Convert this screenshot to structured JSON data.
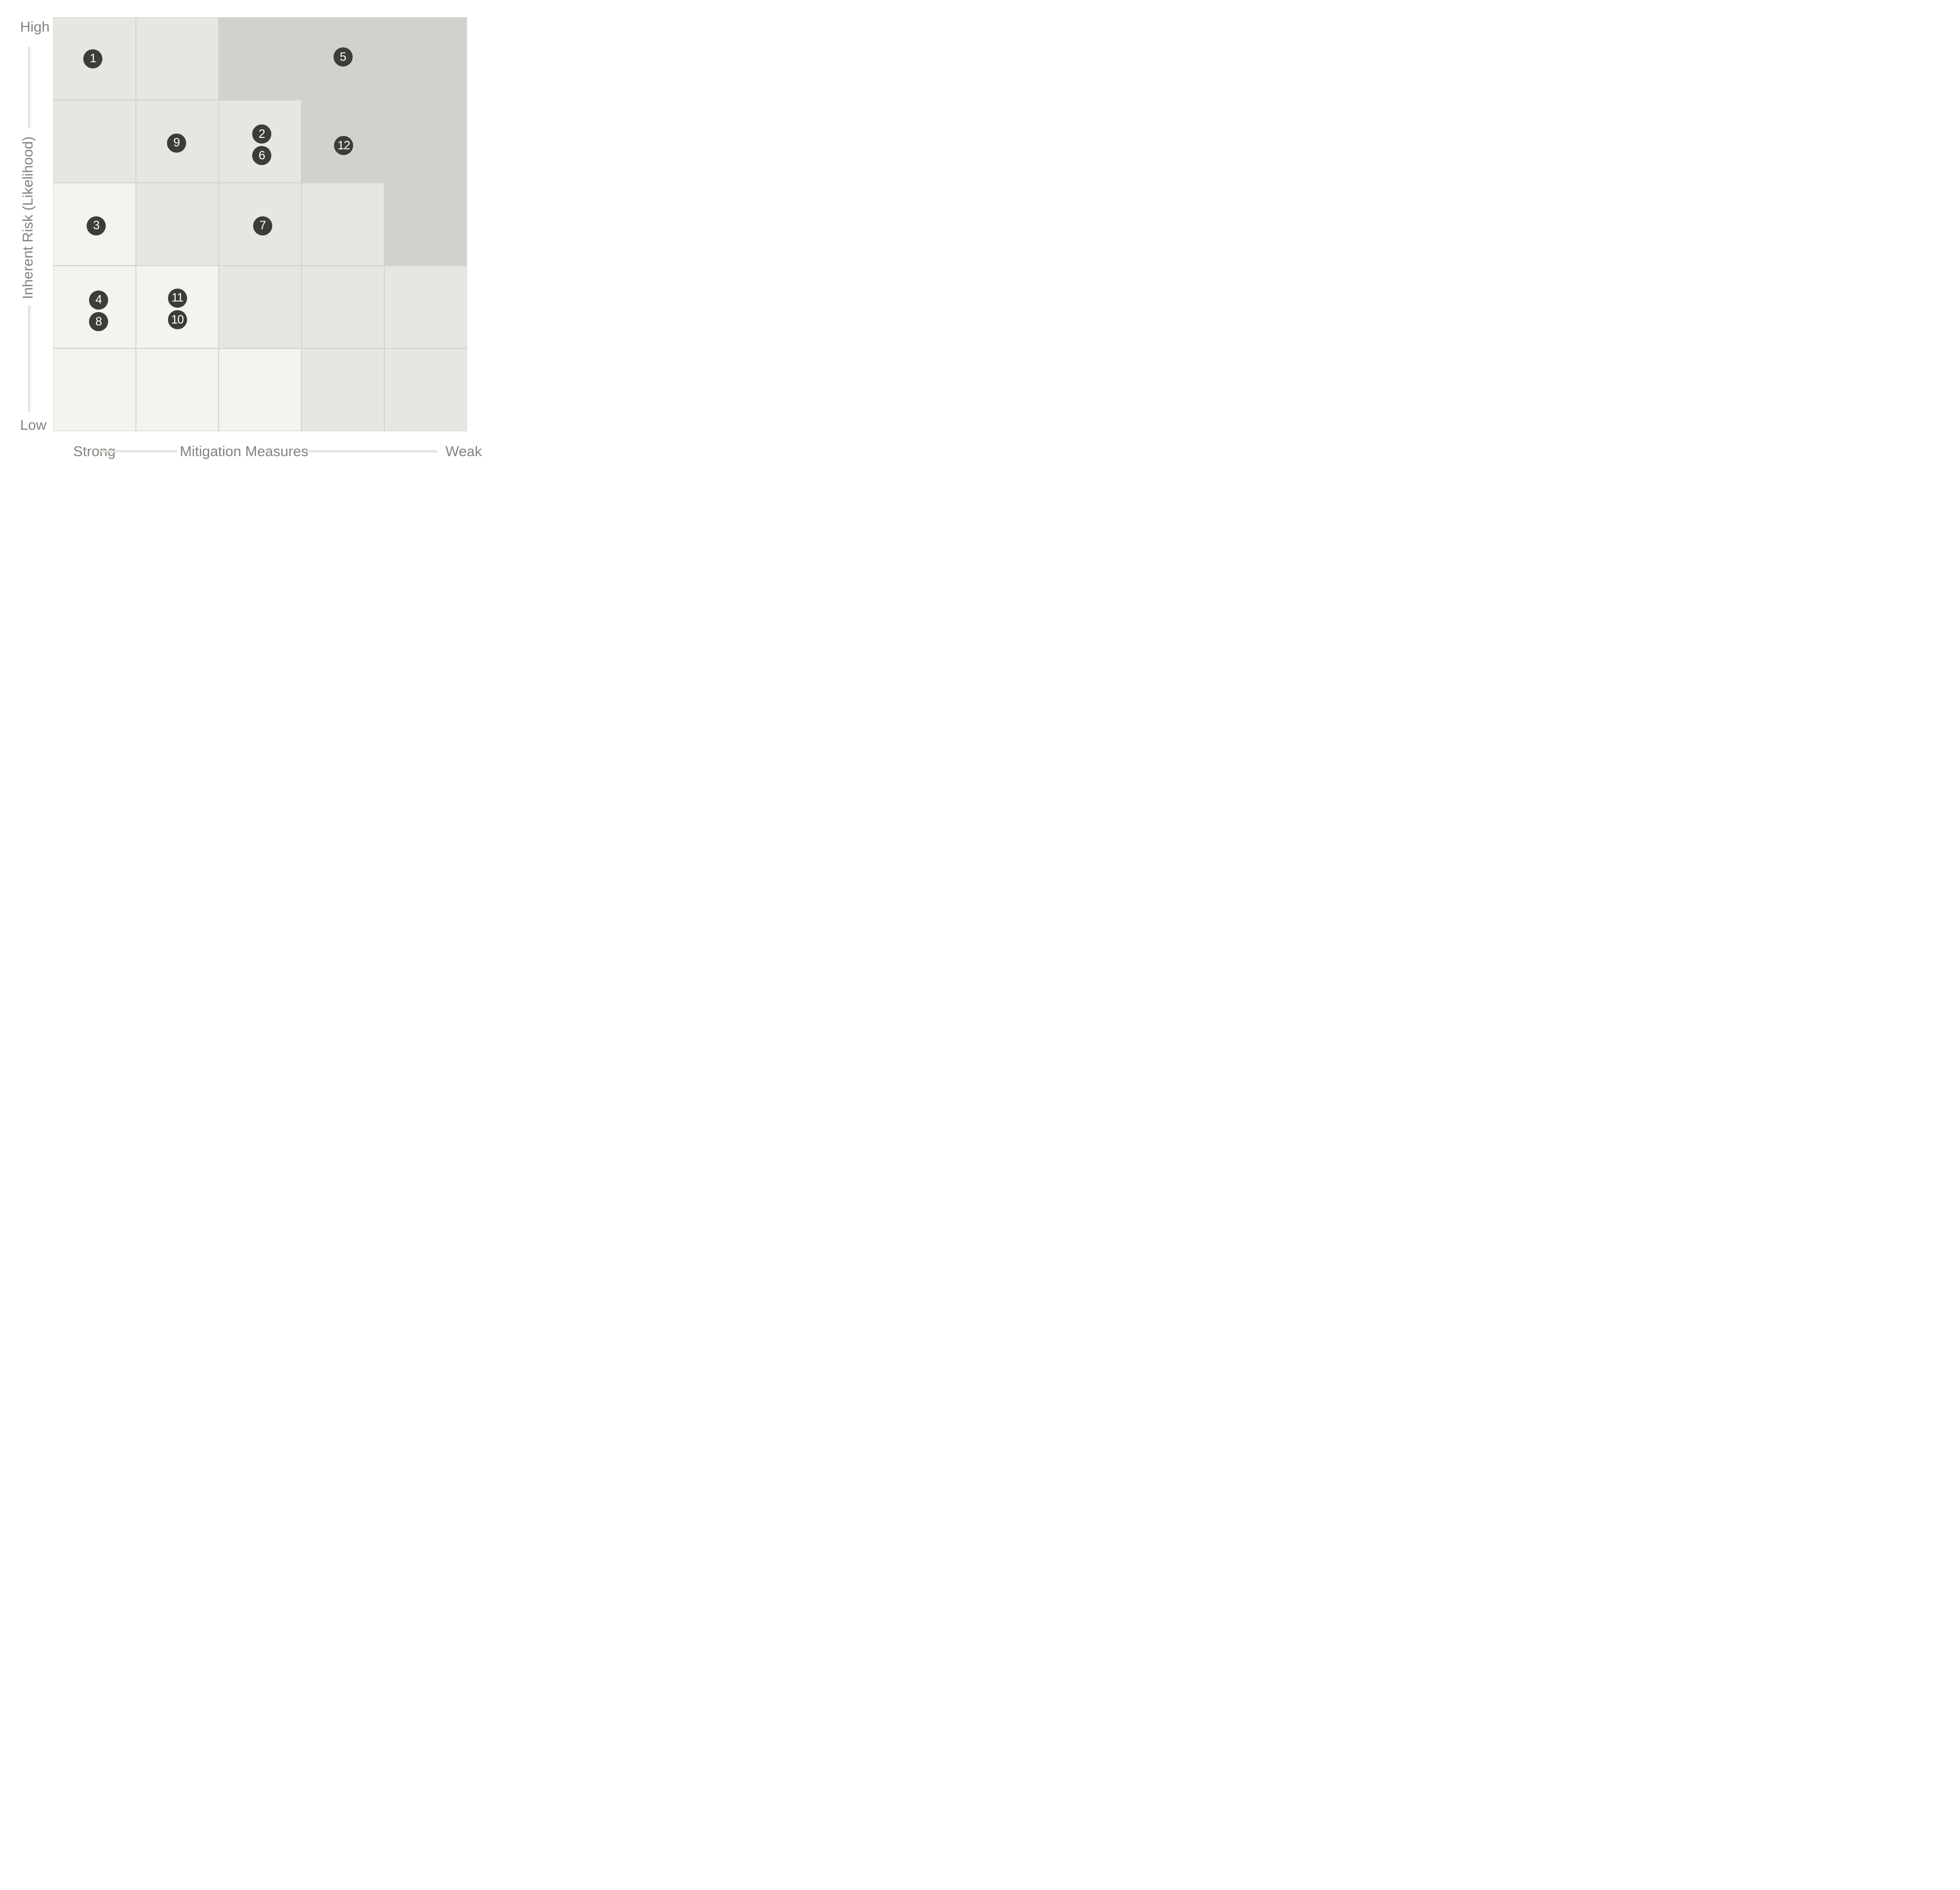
{
  "colors": {
    "background": "#ffffff",
    "cell_dark": "#d2d2cd",
    "cell_mid": "#e7e7e2",
    "cell_light": "#f4f4ef",
    "marker_fill": "#3c3c38",
    "marker_text": "#ffffff",
    "label_text": "#82827e",
    "axis_line": "#c9c9c5"
  },
  "y_axis": {
    "title": "Inherent Risk (Likelihood)",
    "top_label": "High",
    "bottom_label": "Low"
  },
  "x_axis": {
    "title": "Mitigation Measures",
    "left_label": "Strong",
    "right_label": "Weak"
  },
  "chart_data": {
    "type": "heatmap",
    "title": "",
    "xlabel": "Mitigation Measures",
    "ylabel": "Inherent Risk (Likelihood)",
    "x_endpoints": [
      "Strong",
      "Weak"
    ],
    "y_endpoints": [
      "High",
      "Low"
    ],
    "rows": 5,
    "cols": 5,
    "legend": "none",
    "cell_shades": [
      [
        "mid",
        "mid",
        "dark",
        "dark",
        "dark"
      ],
      [
        "mid",
        "mid",
        "mid",
        "dark",
        "dark"
      ],
      [
        "light",
        "mid",
        "mid",
        "mid",
        "dark"
      ],
      [
        "light",
        "light",
        "mid",
        "mid",
        "mid"
      ],
      [
        "light",
        "light",
        "light",
        "mid",
        "mid"
      ]
    ],
    "points": [
      {
        "label": "1",
        "row": 1,
        "col": 1,
        "fx": 0.48,
        "fy": 0.5
      },
      {
        "label": "5",
        "row": 1,
        "col": 4,
        "fx": 0.5,
        "fy": 0.48
      },
      {
        "label": "9",
        "row": 2,
        "col": 2,
        "fx": 0.49,
        "fy": 0.52
      },
      {
        "label": "2",
        "row": 2,
        "col": 3,
        "fx": 0.52,
        "fy": 0.41
      },
      {
        "label": "6",
        "row": 2,
        "col": 3,
        "fx": 0.52,
        "fy": 0.675
      },
      {
        "label": "12",
        "row": 2,
        "col": 4,
        "fx": 0.51,
        "fy": 0.55
      },
      {
        "label": "3",
        "row": 3,
        "col": 1,
        "fx": 0.52,
        "fy": 0.52
      },
      {
        "label": "7",
        "row": 3,
        "col": 3,
        "fx": 0.53,
        "fy": 0.52
      },
      {
        "label": "4",
        "row": 4,
        "col": 1,
        "fx": 0.549,
        "fy": 0.415
      },
      {
        "label": "8",
        "row": 4,
        "col": 1,
        "fx": 0.549,
        "fy": 0.68
      },
      {
        "label": "11",
        "row": 4,
        "col": 2,
        "fx": 0.5,
        "fy": 0.39
      },
      {
        "label": "10",
        "row": 4,
        "col": 2,
        "fx": 0.5,
        "fy": 0.655
      }
    ]
  }
}
